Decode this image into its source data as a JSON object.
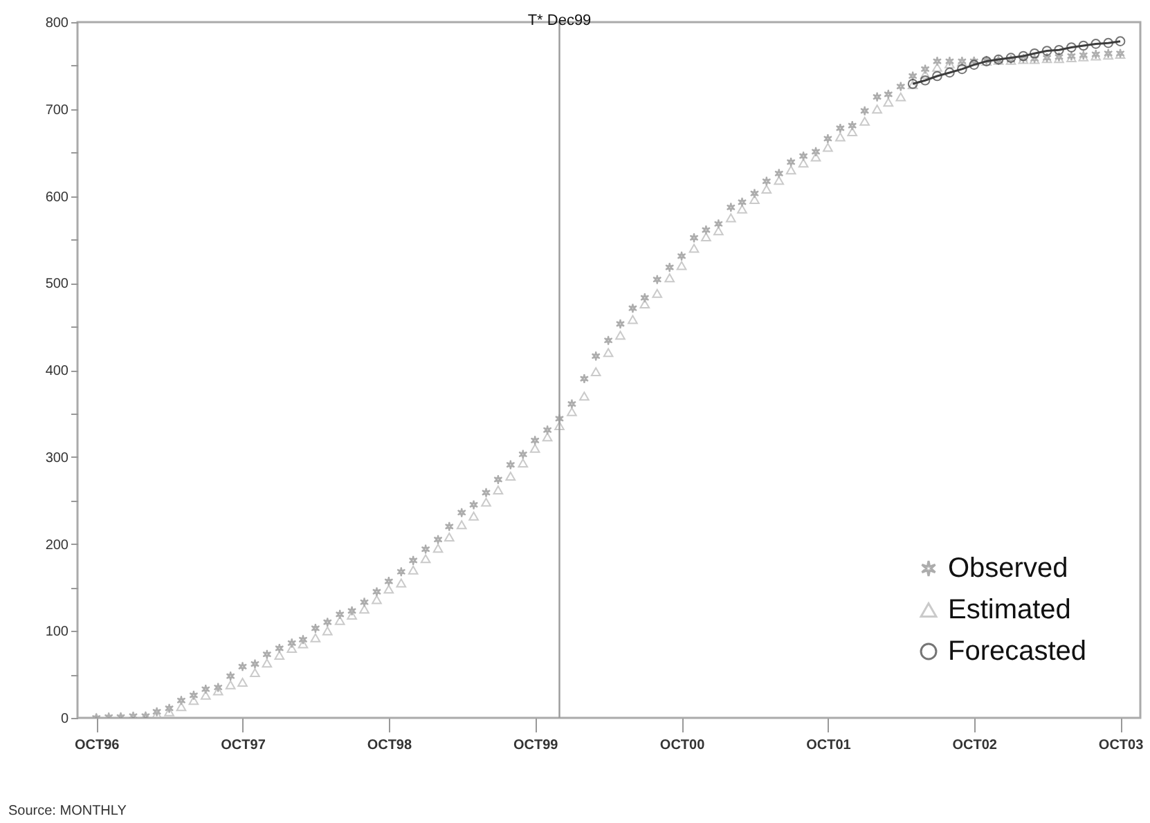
{
  "chart_data": {
    "type": "scatter",
    "annotations": [
      "Source: MONTHLY"
    ],
    "x": [
      "1996-10",
      "1996-11",
      "1996-12",
      "1997-01",
      "1997-02",
      "1997-03",
      "1997-04",
      "1997-05",
      "1997-06",
      "1997-07",
      "1997-08",
      "1997-09",
      "1997-10",
      "1997-11",
      "1997-12",
      "1998-01",
      "1998-02",
      "1998-03",
      "1998-04",
      "1998-05",
      "1998-06",
      "1998-07",
      "1998-08",
      "1998-09",
      "1998-10",
      "1998-11",
      "1998-12",
      "1999-01",
      "1999-02",
      "1999-03",
      "1999-04",
      "1999-05",
      "1999-06",
      "1999-07",
      "1999-08",
      "1999-09",
      "1999-10",
      "1999-11",
      "1999-12",
      "2000-01",
      "2000-02",
      "2000-03",
      "2000-04",
      "2000-05",
      "2000-06",
      "2000-07",
      "2000-08",
      "2000-09",
      "2000-10",
      "2000-11",
      "2000-12",
      "2001-01",
      "2001-02",
      "2001-03",
      "2001-04",
      "2001-05",
      "2001-06",
      "2001-07",
      "2001-08",
      "2001-09",
      "2001-10",
      "2001-11",
      "2001-12",
      "2002-01",
      "2002-02",
      "2002-03",
      "2002-04",
      "2002-05",
      "2002-06",
      "2002-07",
      "2002-08",
      "2002-09",
      "2002-10",
      "2002-11",
      "2002-12",
      "2003-01",
      "2003-02",
      "2003-03",
      "2003-04",
      "2003-05",
      "2003-06",
      "2003-07",
      "2003-08",
      "2003-09",
      "2003-10"
    ],
    "series": [
      {
        "name": "Observed",
        "color": "#8a8a8a",
        "marker": "cross",
        "values": [
          0,
          1,
          1,
          2,
          2,
          7,
          11,
          20,
          26,
          33,
          35,
          48,
          59,
          62,
          73,
          80,
          86,
          90,
          103,
          110,
          119,
          123,
          133,
          145,
          157,
          168,
          181,
          194,
          205,
          220,
          236,
          245,
          259,
          274,
          291,
          303,
          319,
          331,
          344,
          361,
          390,
          416,
          434,
          453,
          471,
          483,
          504,
          518,
          531,
          552,
          561,
          568,
          587,
          593,
          603,
          617,
          626,
          639,
          646,
          651,
          666,
          678,
          681,
          698,
          714,
          717,
          726,
          738,
          746,
          755,
          755,
          755,
          755,
          756,
          756,
          757,
          758,
          758,
          759,
          760,
          761,
          762,
          763,
          764,
          764
        ]
      },
      {
        "name": "Estimated",
        "color": "#b4b4b4",
        "marker": "triangle",
        "values": [
          0,
          0,
          1,
          1,
          2,
          4,
          7,
          13,
          20,
          26,
          31,
          38,
          41,
          52,
          63,
          72,
          80,
          85,
          92,
          100,
          112,
          118,
          125,
          136,
          148,
          155,
          170,
          183,
          195,
          208,
          222,
          232,
          248,
          262,
          278,
          293,
          310,
          323,
          336,
          352,
          370,
          398,
          420,
          440,
          458,
          476,
          488,
          506,
          520,
          540,
          553,
          560,
          575,
          585,
          596,
          608,
          618,
          630,
          638,
          645,
          656,
          668,
          674,
          686,
          700,
          708,
          714,
          728,
          740,
          748,
          752,
          754,
          755,
          755,
          756,
          756,
          757,
          757,
          758,
          758,
          759,
          760,
          761,
          762,
          763
        ]
      },
      {
        "name": "Forecasted",
        "color": "#3c3c3c",
        "type": "line",
        "marker": "circle",
        "x": [
          "2002-05",
          "2002-06",
          "2002-07",
          "2002-08",
          "2002-09",
          "2002-10",
          "2002-11",
          "2002-12",
          "2003-01",
          "2003-02",
          "2003-03",
          "2003-04",
          "2003-05",
          "2003-06",
          "2003-07",
          "2003-08",
          "2003-09",
          "2003-10"
        ],
        "values": [
          729,
          733,
          738,
          742,
          746,
          751,
          755,
          757,
          759,
          761,
          764,
          767,
          768,
          771,
          773,
          775,
          776,
          778
        ]
      }
    ],
    "xlim": [
      "1996-08-15",
      "2003-11-20"
    ],
    "xticks": [
      {
        "value": "1996-10",
        "label": "OCT96"
      },
      {
        "value": "1997-10",
        "label": "OCT97"
      },
      {
        "value": "1998-10",
        "label": "OCT98"
      },
      {
        "value": "1999-10",
        "label": "OCT99"
      },
      {
        "value": "2000-10",
        "label": "OCT00"
      },
      {
        "value": "2001-10",
        "label": "OCT01"
      },
      {
        "value": "2002-10",
        "label": "OCT02"
      },
      {
        "value": "2003-10",
        "label": "OCT03"
      }
    ],
    "ylim": [
      0,
      800
    ],
    "yticks": [
      0,
      {
        "value": 50,
        "label": null
      },
      100,
      {
        "value": 150,
        "label": null
      },
      200,
      {
        "value": 250,
        "label": null
      },
      300,
      {
        "value": 350,
        "label": null
      },
      400,
      {
        "value": 450,
        "label": null
      },
      500,
      {
        "value": 550,
        "label": null
      },
      600,
      {
        "value": 650,
        "label": null
      },
      700,
      {
        "value": 750,
        "label": null
      },
      800
    ],
    "ref_lines": [
      {
        "axis": "x",
        "value": "1999-12",
        "label": "T* Dec99",
        "color": "#9a9a9a"
      }
    ],
    "legend": "bottom right",
    "grid": false
  }
}
